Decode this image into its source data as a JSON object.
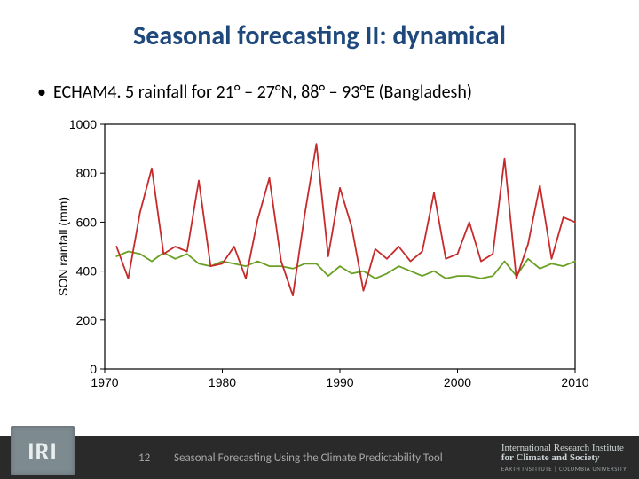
{
  "title": "Seasonal forecasting II: dynamical",
  "title_color": "#1f497d",
  "title_fontsize": 30,
  "bullet_text": "ECHAM4. 5 rainfall for 21° – 27°N, 88° – 93°E (Bangladesh)",
  "bullet_color": "#000000",
  "bullet_fontsize": 20,
  "footer": {
    "bg": "#2a2a2a",
    "page_number": "12",
    "caption": "Seasonal Forecasting Using the Climate Predictability Tool",
    "iri_logo_text": "IRI",
    "institute_line1": "International Research Institute",
    "institute_line2": "for Climate and Society",
    "institute_line3": "EARTH INSTITUTE | COLUMBIA UNIVERSITY"
  },
  "chart": {
    "type": "line",
    "background_color": "#ffffff",
    "axis_color": "#000000",
    "tick_color": "#000000",
    "tick_label_color": "#000000",
    "tick_label_fontsize": 14,
    "ylabel": "SON rainfall (mm)",
    "ylabel_fontsize": 14,
    "ylabel_color": "#000000",
    "line_width": 1.8,
    "xlim": [
      1970,
      2010
    ],
    "ylim": [
      0,
      1000
    ],
    "xticks": [
      1970,
      1980,
      1990,
      2000,
      2010
    ],
    "yticks": [
      0,
      200,
      400,
      600,
      800,
      1000
    ],
    "x_start": 1971,
    "x_step": 1,
    "series": [
      {
        "name": "green",
        "color": "#69a023",
        "y": [
          460,
          480,
          470,
          440,
          475,
          450,
          470,
          430,
          420,
          440,
          430,
          420,
          440,
          420,
          420,
          410,
          430,
          430,
          380,
          420,
          390,
          400,
          370,
          390,
          420,
          400,
          380,
          400,
          370,
          380,
          380,
          370,
          380,
          440,
          380,
          450,
          410,
          430,
          420,
          440
        ]
      },
      {
        "name": "red",
        "color": "#c72a2a",
        "y": [
          500,
          370,
          640,
          820,
          470,
          500,
          480,
          770,
          420,
          430,
          500,
          370,
          610,
          780,
          440,
          300,
          630,
          920,
          460,
          740,
          580,
          320,
          490,
          450,
          500,
          440,
          480,
          720,
          450,
          470,
          600,
          440,
          470,
          860,
          370,
          510,
          750,
          450,
          620,
          600
        ]
      }
    ]
  }
}
